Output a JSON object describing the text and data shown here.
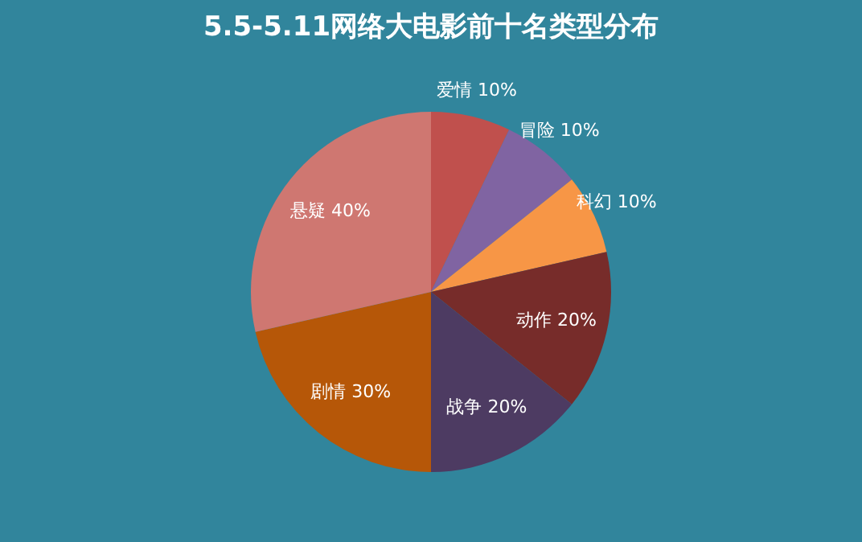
{
  "chart_data": {
    "type": "pie",
    "title": "5.5-5.11网络大电影前十名类型分布",
    "categories": [
      "爱情",
      "冒险",
      "科幻",
      "动作",
      "战争",
      "剧情",
      "悬疑"
    ],
    "values": [
      10,
      10,
      10,
      20,
      20,
      30,
      40
    ],
    "value_labels": [
      "10%",
      "10%",
      "10%",
      "20%",
      "20%",
      "30%",
      "40%"
    ],
    "colors": [
      "#c0504d",
      "#8064a2",
      "#f79646",
      "#772c2a",
      "#4d3b62",
      "#b65708",
      "#cf7771"
    ],
    "legend": false
  }
}
